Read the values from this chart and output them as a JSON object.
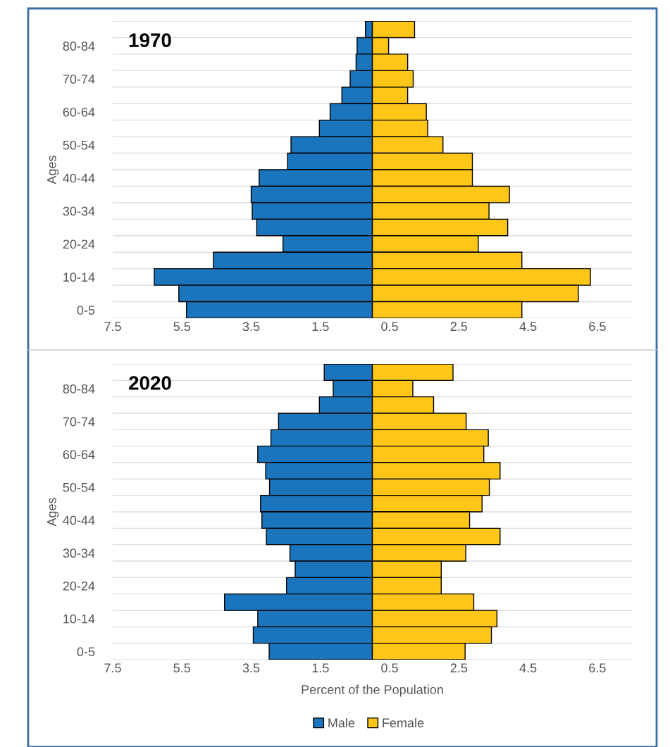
{
  "chart_data": [
    {
      "type": "bar",
      "orientation": "horizontal",
      "title": "1970",
      "ylabel": "Ages",
      "categories": [
        null,
        "80-84",
        null,
        "70-74",
        null,
        "60-64",
        null,
        "50-54",
        null,
        "40-44",
        null,
        "30-34",
        null,
        "20-24",
        null,
        "10-14",
        null,
        "0-5"
      ],
      "series": [
        {
          "name": "Male",
          "color": "#1a75bc",
          "values": [
            -0.2,
            -0.44,
            -0.47,
            -0.64,
            -0.88,
            -1.22,
            -1.53,
            -2.35,
            -2.45,
            -3.27,
            -3.5,
            -3.47,
            -3.34,
            -2.58,
            -4.59,
            -6.3,
            -5.59,
            -5.37
          ]
        },
        {
          "name": "Female",
          "color": "#fec619",
          "values": [
            1.22,
            0.47,
            1.02,
            1.18,
            1.02,
            1.56,
            1.6,
            2.04,
            2.89,
            2.89,
            3.96,
            3.37,
            3.91,
            3.06,
            4.32,
            6.3,
            5.95,
            4.32
          ]
        }
      ],
      "xlim": [
        -7.5,
        7.5
      ],
      "xticks": [
        {
          "value": -7.5,
          "label": "7.5"
        },
        {
          "value": -5.5,
          "label": "5.5"
        },
        {
          "value": -3.5,
          "label": "3.5"
        },
        {
          "value": -1.5,
          "label": "1.5"
        },
        0.5,
        2.5,
        4.5,
        6.5
      ],
      "grid": "y",
      "legend": "bottom",
      "stacked": true
    },
    {
      "type": "bar",
      "orientation": "horizontal",
      "title": "2020",
      "ylabel": "Ages",
      "xlabel": "Percent of the Population",
      "categories": [
        null,
        "80-84",
        null,
        "70-74",
        null,
        "60-64",
        null,
        "50-54",
        null,
        "40-44",
        null,
        "30-34",
        null,
        "20-24",
        null,
        "10-14",
        null,
        "0-5"
      ],
      "series": [
        {
          "name": "Male",
          "color": "#1a75bc",
          "values": [
            -1.39,
            -1.13,
            -1.53,
            -2.71,
            -2.93,
            -3.31,
            -3.08,
            -2.97,
            -3.23,
            -3.19,
            -3.06,
            -2.38,
            -2.23,
            -2.48,
            -4.27,
            -3.31,
            -3.44,
            -2.98
          ]
        },
        {
          "name": "Female",
          "color": "#fec619",
          "values": [
            2.33,
            1.17,
            1.77,
            2.71,
            3.35,
            3.22,
            3.69,
            3.38,
            3.17,
            2.81,
            3.69,
            2.7,
            1.99,
            1.99,
            2.93,
            3.6,
            3.44,
            2.68
          ]
        }
      ],
      "xlim": [
        -7.5,
        7.5
      ],
      "xticks": [
        {
          "value": -7.5,
          "label": "7.5"
        },
        {
          "value": -5.5,
          "label": "5.5"
        },
        {
          "value": -3.5,
          "label": "3.5"
        },
        {
          "value": -1.5,
          "label": "1.5"
        },
        0.5,
        2.5,
        4.5,
        6.5
      ],
      "grid": "y",
      "legend": "bottom",
      "stacked": true
    }
  ]
}
